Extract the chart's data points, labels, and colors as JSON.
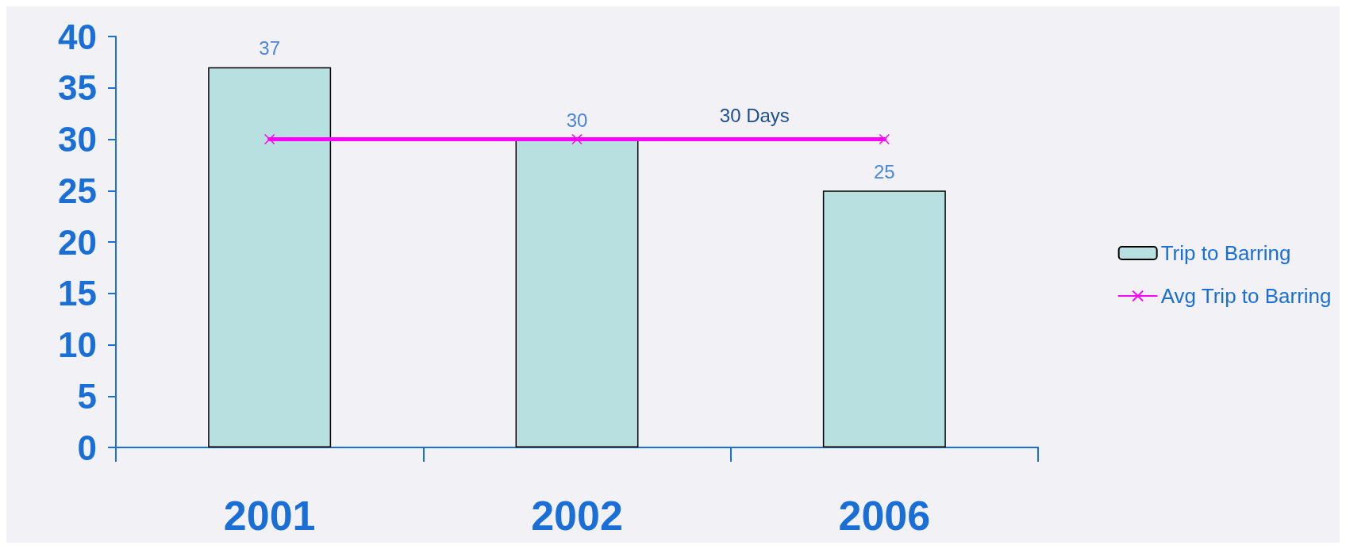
{
  "chart_data": {
    "type": "bar",
    "categories": [
      "2001",
      "2002",
      "2006"
    ],
    "series": [
      {
        "name": "Trip to Barring",
        "color": "#b9e0e1",
        "values": [
          37,
          30,
          25
        ],
        "value_labels": [
          "37",
          "30",
          "25"
        ]
      },
      {
        "name": "Avg Trip to Barring",
        "type": "line",
        "color": "#ff00ff",
        "values": [
          30,
          30,
          30
        ]
      }
    ],
    "ylim": [
      0,
      40
    ],
    "yticks": [
      0,
      5,
      10,
      15,
      20,
      25,
      30,
      35,
      40
    ],
    "grid": false,
    "legend": "right",
    "marker": "cross",
    "line_style": "solid",
    "annotations": [
      "30 Days"
    ]
  }
}
